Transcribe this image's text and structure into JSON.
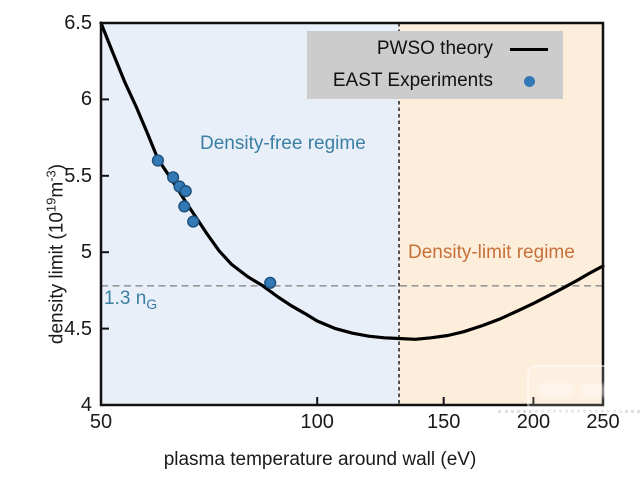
{
  "chart_data": {
    "type": "line",
    "title": "",
    "xlabel": "plasma temperature around wall (eV)",
    "ylabel_parts": {
      "pre": "density limit (10",
      "sup1": "19",
      "mid": "m",
      "sup2": "-3",
      "post": ")"
    },
    "x_scale": "log",
    "xlim": [
      50,
      250
    ],
    "ylim": [
      4.0,
      6.5
    ],
    "x_ticks": [
      "50",
      "100",
      "150",
      "200",
      "250"
    ],
    "x_tick_values": [
      50,
      100,
      150,
      200,
      250
    ],
    "y_ticks": [
      "4",
      "4.5",
      "5",
      "5.5",
      "6",
      "6.5"
    ],
    "y_tick_values": [
      4,
      4.5,
      5,
      5.5,
      6,
      6.5
    ],
    "grid": "off",
    "series": [
      {
        "name": "PWSO theory",
        "type": "line",
        "color": "#000000",
        "points": [
          [
            50,
            6.5
          ],
          [
            52,
            6.3
          ],
          [
            54,
            6.11
          ],
          [
            56,
            5.95
          ],
          [
            58,
            5.78
          ],
          [
            60,
            5.61
          ],
          [
            62,
            5.51
          ],
          [
            64,
            5.41
          ],
          [
            66,
            5.31
          ],
          [
            68,
            5.22
          ],
          [
            70,
            5.13
          ],
          [
            73,
            5.01
          ],
          [
            76,
            4.92
          ],
          [
            80,
            4.84
          ],
          [
            84,
            4.78
          ],
          [
            88,
            4.71
          ],
          [
            92,
            4.65
          ],
          [
            96,
            4.6
          ],
          [
            100,
            4.55
          ],
          [
            106,
            4.5
          ],
          [
            112,
            4.47
          ],
          [
            118,
            4.45
          ],
          [
            124,
            4.44
          ],
          [
            130,
            4.435
          ],
          [
            137,
            4.43
          ],
          [
            144,
            4.44
          ],
          [
            152,
            4.455
          ],
          [
            160,
            4.48
          ],
          [
            170,
            4.52
          ],
          [
            180,
            4.565
          ],
          [
            190,
            4.615
          ],
          [
            200,
            4.665
          ],
          [
            210,
            4.715
          ],
          [
            220,
            4.765
          ],
          [
            230,
            4.815
          ],
          [
            240,
            4.865
          ],
          [
            250,
            4.91
          ]
        ]
      },
      {
        "name": "EAST Experiments",
        "type": "scatter",
        "color": "#3379b5",
        "edge_color": "#1d4f7c",
        "points": [
          [
            60,
            5.6
          ],
          [
            63,
            5.49
          ],
          [
            64.3,
            5.43
          ],
          [
            65.6,
            5.4
          ],
          [
            65.3,
            5.3
          ],
          [
            67.2,
            5.2
          ],
          [
            86,
            4.8
          ]
        ]
      }
    ],
    "reference_lines": {
      "vertical": {
        "x": 130,
        "style": "dashed",
        "color": "#2b2b2b"
      },
      "horizontal": {
        "y": 4.78,
        "style": "dashed",
        "color": "#999999"
      }
    },
    "hline_label": {
      "main": "1.3 n",
      "sub": "G",
      "color": "#3b80a4"
    },
    "regions": [
      {
        "label": "Density-free regime",
        "x_from": 50,
        "x_to": 130,
        "fill": "#e9eff8",
        "label_color": "#3b80a4"
      },
      {
        "label": "Density-limit regime",
        "x_from": 130,
        "x_to": 250,
        "fill": "#fdeedc",
        "label_color": "#c7703a"
      }
    ],
    "legend": {
      "position": "top-right",
      "background": "#cccccc",
      "entries": [
        {
          "label": "PWSO theory",
          "marker": "line",
          "color": "#000000"
        },
        {
          "label": "EAST Experiments",
          "marker": "dot",
          "color": "#3379b5"
        }
      ]
    }
  }
}
